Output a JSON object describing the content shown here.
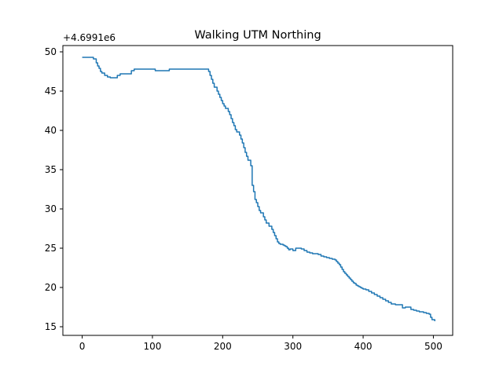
{
  "chart_data": {
    "type": "line",
    "title": "Walking UTM Northing",
    "xlabel": "",
    "ylabel": "",
    "y_offset_label": "+4.6991e6",
    "xlim": [
      -27.5,
      527.5
    ],
    "ylim": [
      13.9,
      50.8
    ],
    "xticks": [
      0,
      100,
      200,
      300,
      400,
      500
    ],
    "xtick_labels": [
      "0",
      "100",
      "200",
      "300",
      "400",
      "500"
    ],
    "yticks": [
      15,
      20,
      25,
      30,
      35,
      40,
      45,
      50
    ],
    "ytick_labels": [
      "15",
      "20",
      "25",
      "30",
      "35",
      "40",
      "45",
      "50"
    ],
    "grid": false,
    "line_color": "#1f77b4",
    "series": [
      {
        "x": [
          0,
          8,
          16,
          20,
          22,
          24,
          26,
          28,
          32,
          36,
          40,
          46,
          50,
          54,
          60,
          66,
          70,
          74,
          78,
          90,
          96,
          100,
          104,
          110,
          120,
          124,
          130,
          140,
          150,
          160,
          170,
          176,
          180,
          182,
          184,
          186,
          188,
          190,
          192,
          194,
          196,
          198,
          200,
          202,
          204,
          206,
          208,
          210,
          212,
          214,
          216,
          218,
          220,
          222,
          224,
          226,
          228,
          230,
          232,
          234,
          236,
          238,
          240,
          242,
          244,
          246,
          248,
          250,
          252,
          254,
          256,
          258,
          260,
          262,
          266,
          270,
          272,
          274,
          276,
          278,
          280,
          282,
          284,
          286,
          288,
          290,
          292,
          294,
          296,
          300,
          304,
          308,
          312,
          316,
          320,
          324,
          328,
          332,
          336,
          340,
          344,
          348,
          352,
          356,
          360,
          362,
          364,
          366,
          368,
          370,
          372,
          374,
          376,
          378,
          380,
          382,
          384,
          386,
          388,
          390,
          392,
          394,
          396,
          398,
          400,
          404,
          408,
          412,
          416,
          420,
          424,
          428,
          432,
          436,
          440,
          446,
          452,
          456,
          460,
          464,
          468,
          472,
          476,
          480,
          486,
          490,
          494,
          496,
          498,
          502
        ],
        "y": [
          49.3,
          49.3,
          49.1,
          48.6,
          48.2,
          47.9,
          47.5,
          47.3,
          47.0,
          46.8,
          46.7,
          46.7,
          47.0,
          47.2,
          47.2,
          47.2,
          47.6,
          47.8,
          47.8,
          47.8,
          47.8,
          47.8,
          47.6,
          47.6,
          47.6,
          47.8,
          47.8,
          47.8,
          47.8,
          47.8,
          47.8,
          47.8,
          47.5,
          47.0,
          46.5,
          46.0,
          45.5,
          45.5,
          45.0,
          44.6,
          44.2,
          43.8,
          43.4,
          43.1,
          42.8,
          42.8,
          42.4,
          42.0,
          41.5,
          41.0,
          40.6,
          40.1,
          39.8,
          39.8,
          39.4,
          38.9,
          38.4,
          37.8,
          37.2,
          36.7,
          36.2,
          36.2,
          35.5,
          33.0,
          32.2,
          31.2,
          30.8,
          30.3,
          29.8,
          29.5,
          29.5,
          29.0,
          28.6,
          28.2,
          27.8,
          27.4,
          27.0,
          26.6,
          26.2,
          25.8,
          25.6,
          25.5,
          25.5,
          25.4,
          25.3,
          25.2,
          25.0,
          24.8,
          24.9,
          24.7,
          25.0,
          25.0,
          24.9,
          24.7,
          24.5,
          24.4,
          24.3,
          24.3,
          24.2,
          24.0,
          23.9,
          23.8,
          23.7,
          23.6,
          23.5,
          23.3,
          23.1,
          22.9,
          22.6,
          22.3,
          22.0,
          21.8,
          21.6,
          21.4,
          21.2,
          21.0,
          20.8,
          20.6,
          20.5,
          20.3,
          20.2,
          20.1,
          20.0,
          19.9,
          19.8,
          19.7,
          19.5,
          19.3,
          19.1,
          18.9,
          18.7,
          18.5,
          18.3,
          18.1,
          17.9,
          17.8,
          17.8,
          17.4,
          17.5,
          17.5,
          17.2,
          17.1,
          17.0,
          16.9,
          16.8,
          16.7,
          16.6,
          16.2,
          15.9,
          15.7
        ]
      }
    ]
  }
}
